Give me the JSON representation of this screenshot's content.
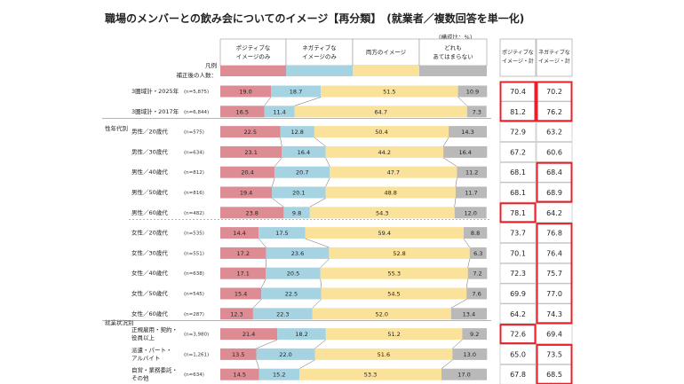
{
  "title": "職場のメンバーとの飲み会についてのイメージ【再分類】　(就業者／複数回答を単一化)",
  "unit_note": "(構成比：%)",
  "legend_label": "凡例",
  "base_label": "補正後の人数：",
  "column_headers": [
    "ポジティブな\nイメージのみ",
    "ネガティブな\nイメージのみ",
    "両方のイメージ",
    "どれも\nあてはまらない"
  ],
  "summary_headers": [
    "ポジティブな\nイメージ・計",
    "ネガティブな\nイメージ・計"
  ],
  "group_labels": [
    "性年代別",
    "就業状況別"
  ],
  "colors": {
    "positive": "#dd8c93",
    "negative": "#a6d3e1",
    "both": "#fbe29b",
    "none": "#b9b9b9",
    "highlight": "#e8202a"
  },
  "chart_data": {
    "type": "bar",
    "stacked": true,
    "orientation": "horizontal",
    "series_names": [
      "ポジティブなイメージのみ",
      "ネガティブなイメージのみ",
      "両方のイメージ",
      "どれもあてはまらない"
    ],
    "rows": [
      {
        "label": "3圏域計・2025年",
        "n": "(n=5,875)",
        "values": [
          19.0,
          18.7,
          51.5,
          10.9
        ],
        "pos_total": "70.4",
        "neg_total": "70.2"
      },
      {
        "label": "3圏域計・2017年",
        "n": "(n=6,844)",
        "values": [
          16.5,
          11.4,
          64.7,
          7.3
        ],
        "pos_total": "81.2",
        "neg_total": "76.2"
      },
      {
        "label": "男性／20歳代",
        "n": "(n=575)",
        "values": [
          22.5,
          12.8,
          50.4,
          14.3
        ],
        "pos_total": "72.9",
        "neg_total": "63.2"
      },
      {
        "label": "男性／30歳代",
        "n": "(n=634)",
        "values": [
          23.1,
          16.4,
          44.2,
          16.4
        ],
        "pos_total": "67.2",
        "neg_total": "60.6"
      },
      {
        "label": "男性／40歳代",
        "n": "(n=812)",
        "values": [
          20.4,
          20.7,
          47.7,
          11.2
        ],
        "pos_total": "68.1",
        "neg_total": "68.4"
      },
      {
        "label": "男性／50歳代",
        "n": "(n=816)",
        "values": [
          19.4,
          20.1,
          48.8,
          11.7
        ],
        "pos_total": "68.1",
        "neg_total": "68.9"
      },
      {
        "label": "男性／60歳代",
        "n": "(n=482)",
        "values": [
          23.8,
          9.8,
          54.3,
          12.0
        ],
        "pos_total": "78.1",
        "neg_total": "64.2"
      },
      {
        "label": "女性／20歳代",
        "n": "(n=535)",
        "values": [
          14.4,
          17.5,
          59.4,
          8.8
        ],
        "pos_total": "73.7",
        "neg_total": "76.8"
      },
      {
        "label": "女性／30歳代",
        "n": "(n=551)",
        "values": [
          17.2,
          23.6,
          52.8,
          6.3
        ],
        "pos_total": "70.1",
        "neg_total": "76.4"
      },
      {
        "label": "女性／40歳代",
        "n": "(n=638)",
        "values": [
          17.1,
          20.5,
          55.3,
          7.2
        ],
        "pos_total": "72.3",
        "neg_total": "75.7"
      },
      {
        "label": "女性／50歳代",
        "n": "(n=545)",
        "values": [
          15.4,
          22.5,
          54.5,
          7.6
        ],
        "pos_total": "69.9",
        "neg_total": "77.0"
      },
      {
        "label": "女性／60歳代",
        "n": "(n=287)",
        "values": [
          12.3,
          22.3,
          52.0,
          13.4
        ],
        "pos_total": "64.2",
        "neg_total": "74.3"
      },
      {
        "label": "正規雇用・契約・\n役員以上",
        "n": "(n=3,980)",
        "values": [
          21.4,
          18.2,
          51.2,
          9.2
        ],
        "pos_total": "72.6",
        "neg_total": "69.4"
      },
      {
        "label": "派遣・パート・\nアルバイト",
        "n": "(n=1,261)",
        "values": [
          13.5,
          22.0,
          51.6,
          13.0
        ],
        "pos_total": "65.0",
        "neg_total": "73.5"
      },
      {
        "label": "自営・業務委託・\nその他",
        "n": "(n=634)",
        "values": [
          14.5,
          15.2,
          53.3,
          17.0
        ],
        "pos_total": "67.8",
        "neg_total": "68.5"
      }
    ],
    "highlights": [
      {
        "column": "pos_total",
        "rows": [
          0,
          1
        ]
      },
      {
        "column": "neg_total",
        "rows": [
          0,
          1
        ]
      },
      {
        "column": "pos_total",
        "rows": [
          6,
          6
        ]
      },
      {
        "column": "neg_total",
        "rows": [
          4,
          5
        ]
      },
      {
        "column": "neg_total",
        "rows": [
          7,
          11
        ]
      },
      {
        "column": "pos_total",
        "rows": [
          12,
          12
        ]
      },
      {
        "column": "neg_total",
        "rows": [
          13,
          14
        ]
      }
    ]
  }
}
